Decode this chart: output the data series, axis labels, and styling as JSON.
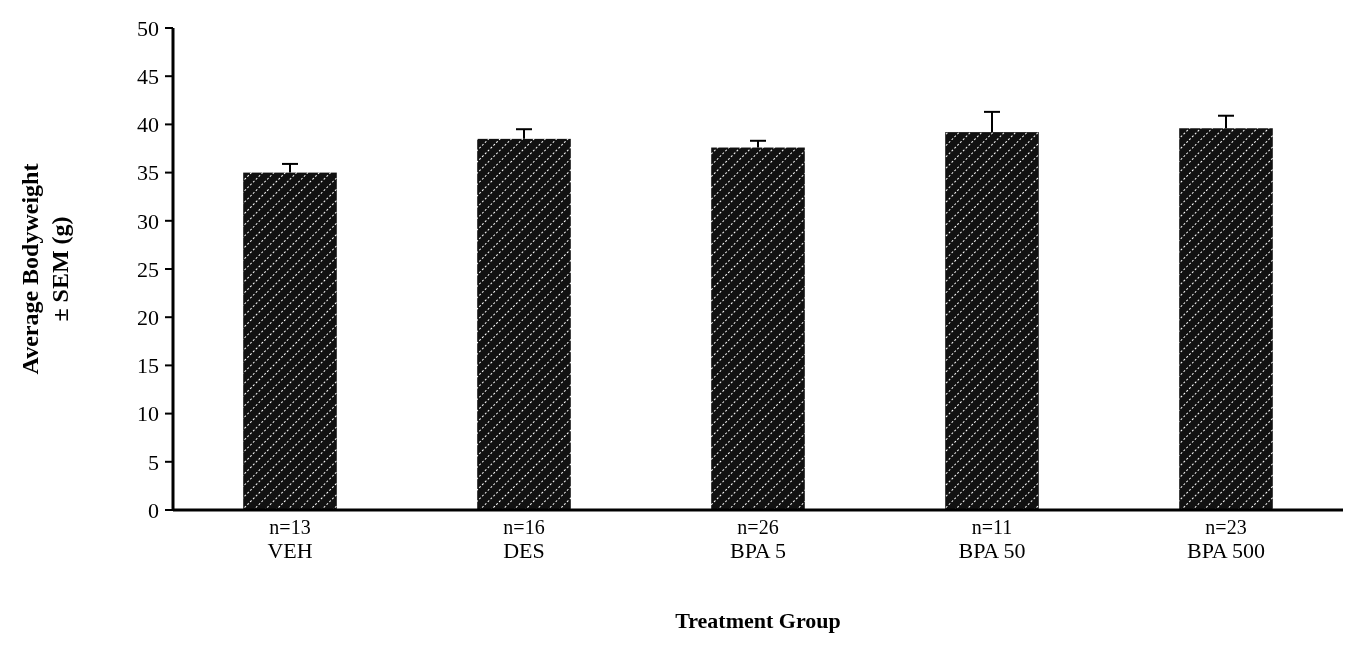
{
  "chart_data": {
    "type": "bar",
    "xlabel": "Treatment Group",
    "ylabel": "Average Bodyweight\n± SEM (g)",
    "categories": [
      "VEH",
      "DES",
      "BPA 5",
      "BPA 50",
      "BPA 500"
    ],
    "values": [
      35.0,
      38.5,
      37.6,
      39.2,
      39.6
    ],
    "errors": [
      0.9,
      1.0,
      0.7,
      2.1,
      1.3
    ],
    "color": "#111111",
    "ylim": [
      0,
      50
    ],
    "yticks": [
      0,
      5,
      10,
      15,
      20,
      25,
      30,
      35,
      40,
      45,
      50
    ],
    "grid": false,
    "annotations": [
      {
        "text": "n=13",
        "x": "VEH",
        "y": 0
      },
      {
        "text": "n=16",
        "x": "DES",
        "y": 0
      },
      {
        "text": "n=26",
        "x": "BPA 5",
        "y": 0
      },
      {
        "text": "n=11",
        "x": "BPA 50",
        "y": 0
      },
      {
        "text": "n=23",
        "x": "BPA 500",
        "y": 0
      }
    ]
  }
}
